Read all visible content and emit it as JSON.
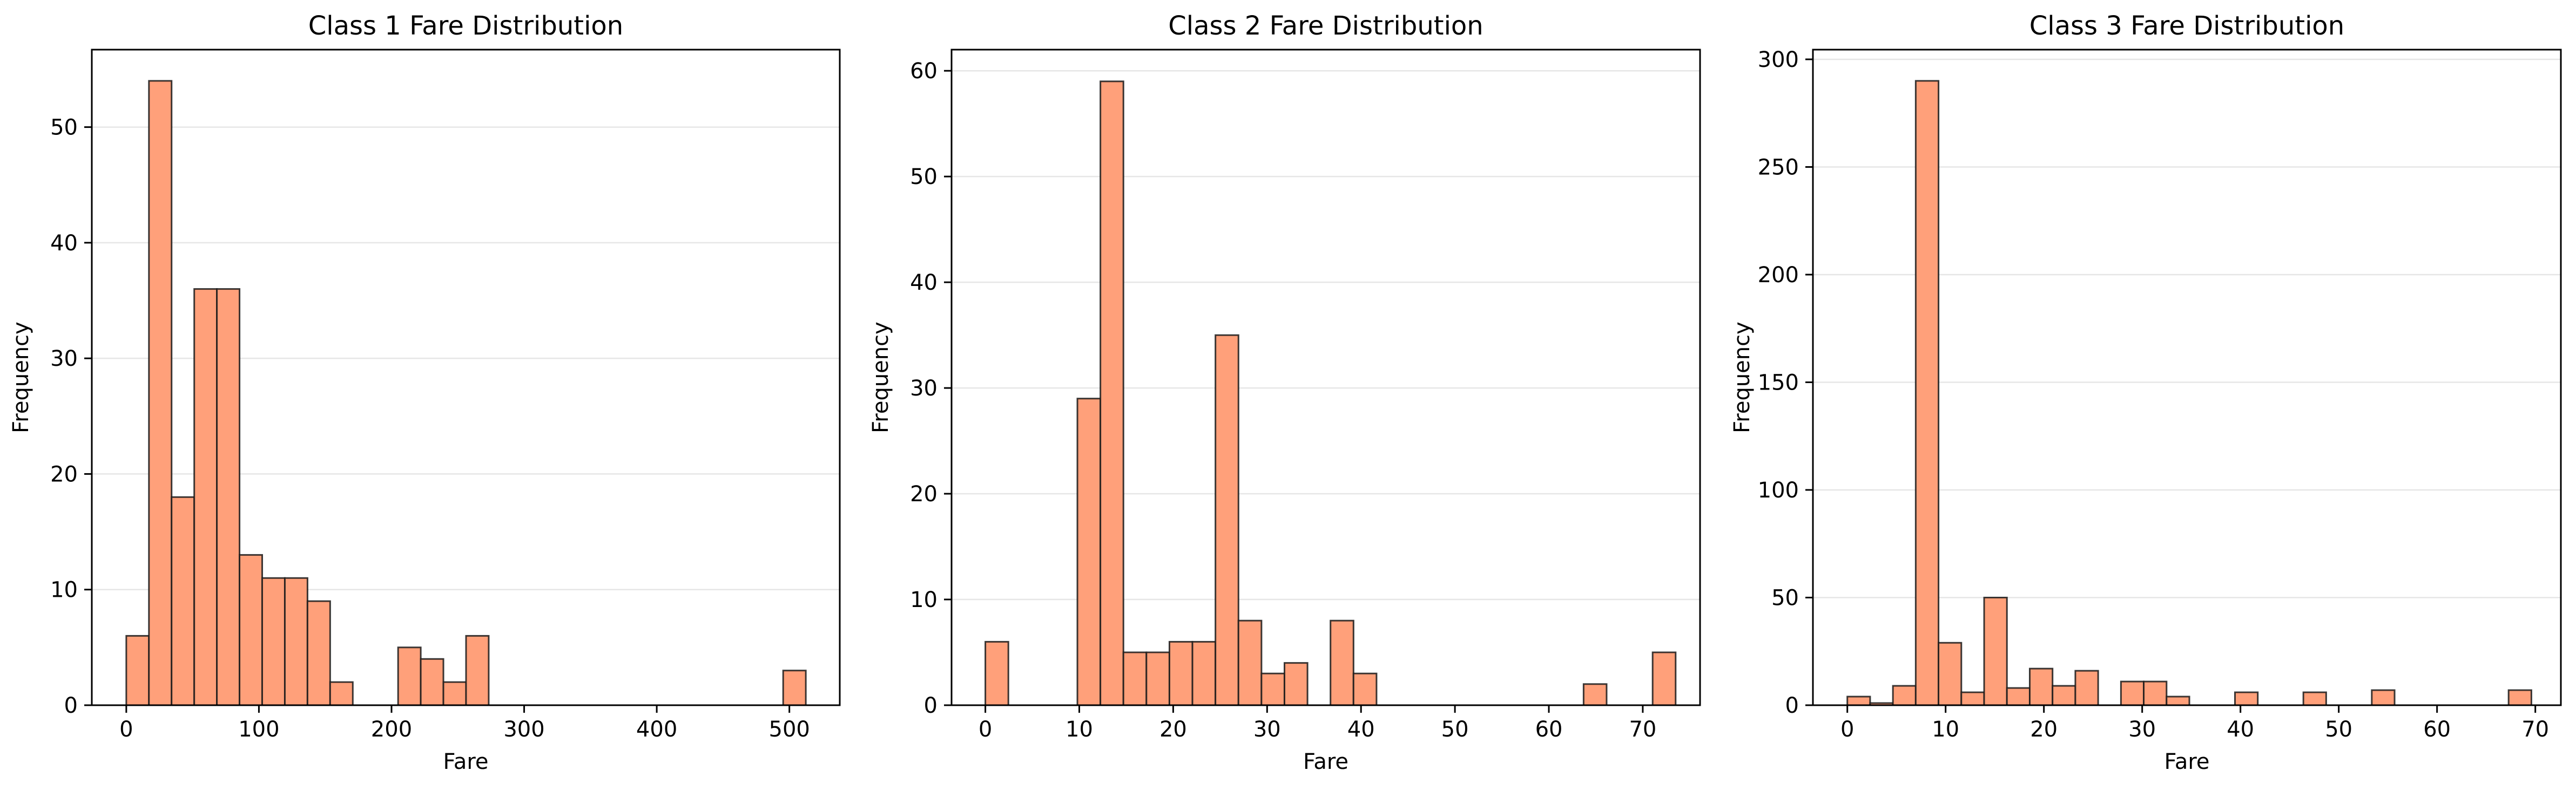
{
  "chart_data": [
    {
      "type": "bar",
      "title": "Class 1 Fare Distribution",
      "xlabel": "Fare",
      "ylabel": "Frequency",
      "xlim": [
        -26,
        538
      ],
      "ylim": [
        0,
        56.7
      ],
      "xticks": [
        0,
        100,
        200,
        300,
        400,
        500
      ],
      "yticks": [
        0,
        10,
        20,
        30,
        40,
        50
      ],
      "grid": "y",
      "bin_edges": [
        0,
        17.08,
        34.16,
        51.24,
        68.32,
        85.4,
        102.48,
        119.56,
        136.64,
        153.72,
        170.8,
        187.88,
        204.96,
        222.04,
        239.12,
        256.2,
        273.28,
        290.36,
        307.44,
        324.52,
        341.6,
        358.68,
        375.76,
        392.84,
        409.92,
        427.0,
        444.08,
        461.16,
        478.24,
        495.32,
        512.4
      ],
      "values": [
        6,
        54,
        18,
        36,
        36,
        13,
        11,
        11,
        9,
        2,
        0,
        0,
        5,
        4,
        2,
        6,
        0,
        0,
        0,
        0,
        0,
        0,
        0,
        0,
        0,
        0,
        0,
        0,
        0,
        3
      ]
    },
    {
      "type": "bar",
      "title": "Class 2 Fare Distribution",
      "xlabel": "Fare",
      "ylabel": "Frequency",
      "xlim": [
        -3.6,
        76.1
      ],
      "ylim": [
        0,
        62
      ],
      "xticks": [
        0,
        10,
        20,
        30,
        40,
        50,
        60,
        70
      ],
      "yticks": [
        0,
        10,
        20,
        30,
        40,
        50,
        60
      ],
      "grid": "y",
      "bin_edges": [
        0,
        2.45,
        4.9,
        7.35,
        9.8,
        12.25,
        14.7,
        17.15,
        19.6,
        22.05,
        24.5,
        26.95,
        29.4,
        31.85,
        34.3,
        36.75,
        39.2,
        41.65,
        44.1,
        46.55,
        49.0,
        51.45,
        53.9,
        56.35,
        58.8,
        61.25,
        63.7,
        66.15,
        68.6,
        71.05,
        73.5
      ],
      "values": [
        6,
        0,
        0,
        0,
        29,
        59,
        5,
        5,
        6,
        6,
        35,
        8,
        3,
        4,
        0,
        8,
        3,
        0,
        0,
        0,
        0,
        0,
        0,
        0,
        0,
        0,
        2,
        0,
        0,
        5
      ]
    },
    {
      "type": "bar",
      "title": "Class 3 Fare Distribution",
      "xlabel": "Fare",
      "ylabel": "Frequency",
      "xlim": [
        -3.5,
        72.6
      ],
      "ylim": [
        0,
        304.5
      ],
      "xticks": [
        0,
        10,
        20,
        30,
        40,
        50,
        60,
        70
      ],
      "yticks": [
        0,
        50,
        100,
        150,
        200,
        250,
        300
      ],
      "grid": "y",
      "bin_edges": [
        0,
        2.32,
        4.64,
        6.96,
        9.28,
        11.6,
        13.92,
        16.24,
        18.56,
        20.88,
        23.2,
        25.52,
        27.84,
        30.16,
        32.48,
        34.8,
        37.12,
        39.44,
        41.76,
        44.08,
        46.4,
        48.72,
        51.04,
        53.36,
        55.68,
        58.0,
        60.32,
        62.64,
        64.96,
        67.28,
        69.6
      ],
      "values": [
        4,
        1,
        9,
        290,
        29,
        6,
        50,
        8,
        17,
        9,
        16,
        0,
        11,
        11,
        4,
        0,
        0,
        6,
        0,
        0,
        6,
        0,
        0,
        7,
        0,
        0,
        0,
        0,
        0,
        7
      ]
    }
  ],
  "colors": {
    "bar_fill": "#FFA07A",
    "bar_edge": "#1a1a1a",
    "grid": "#e6e6e6",
    "axis": "#000000"
  }
}
